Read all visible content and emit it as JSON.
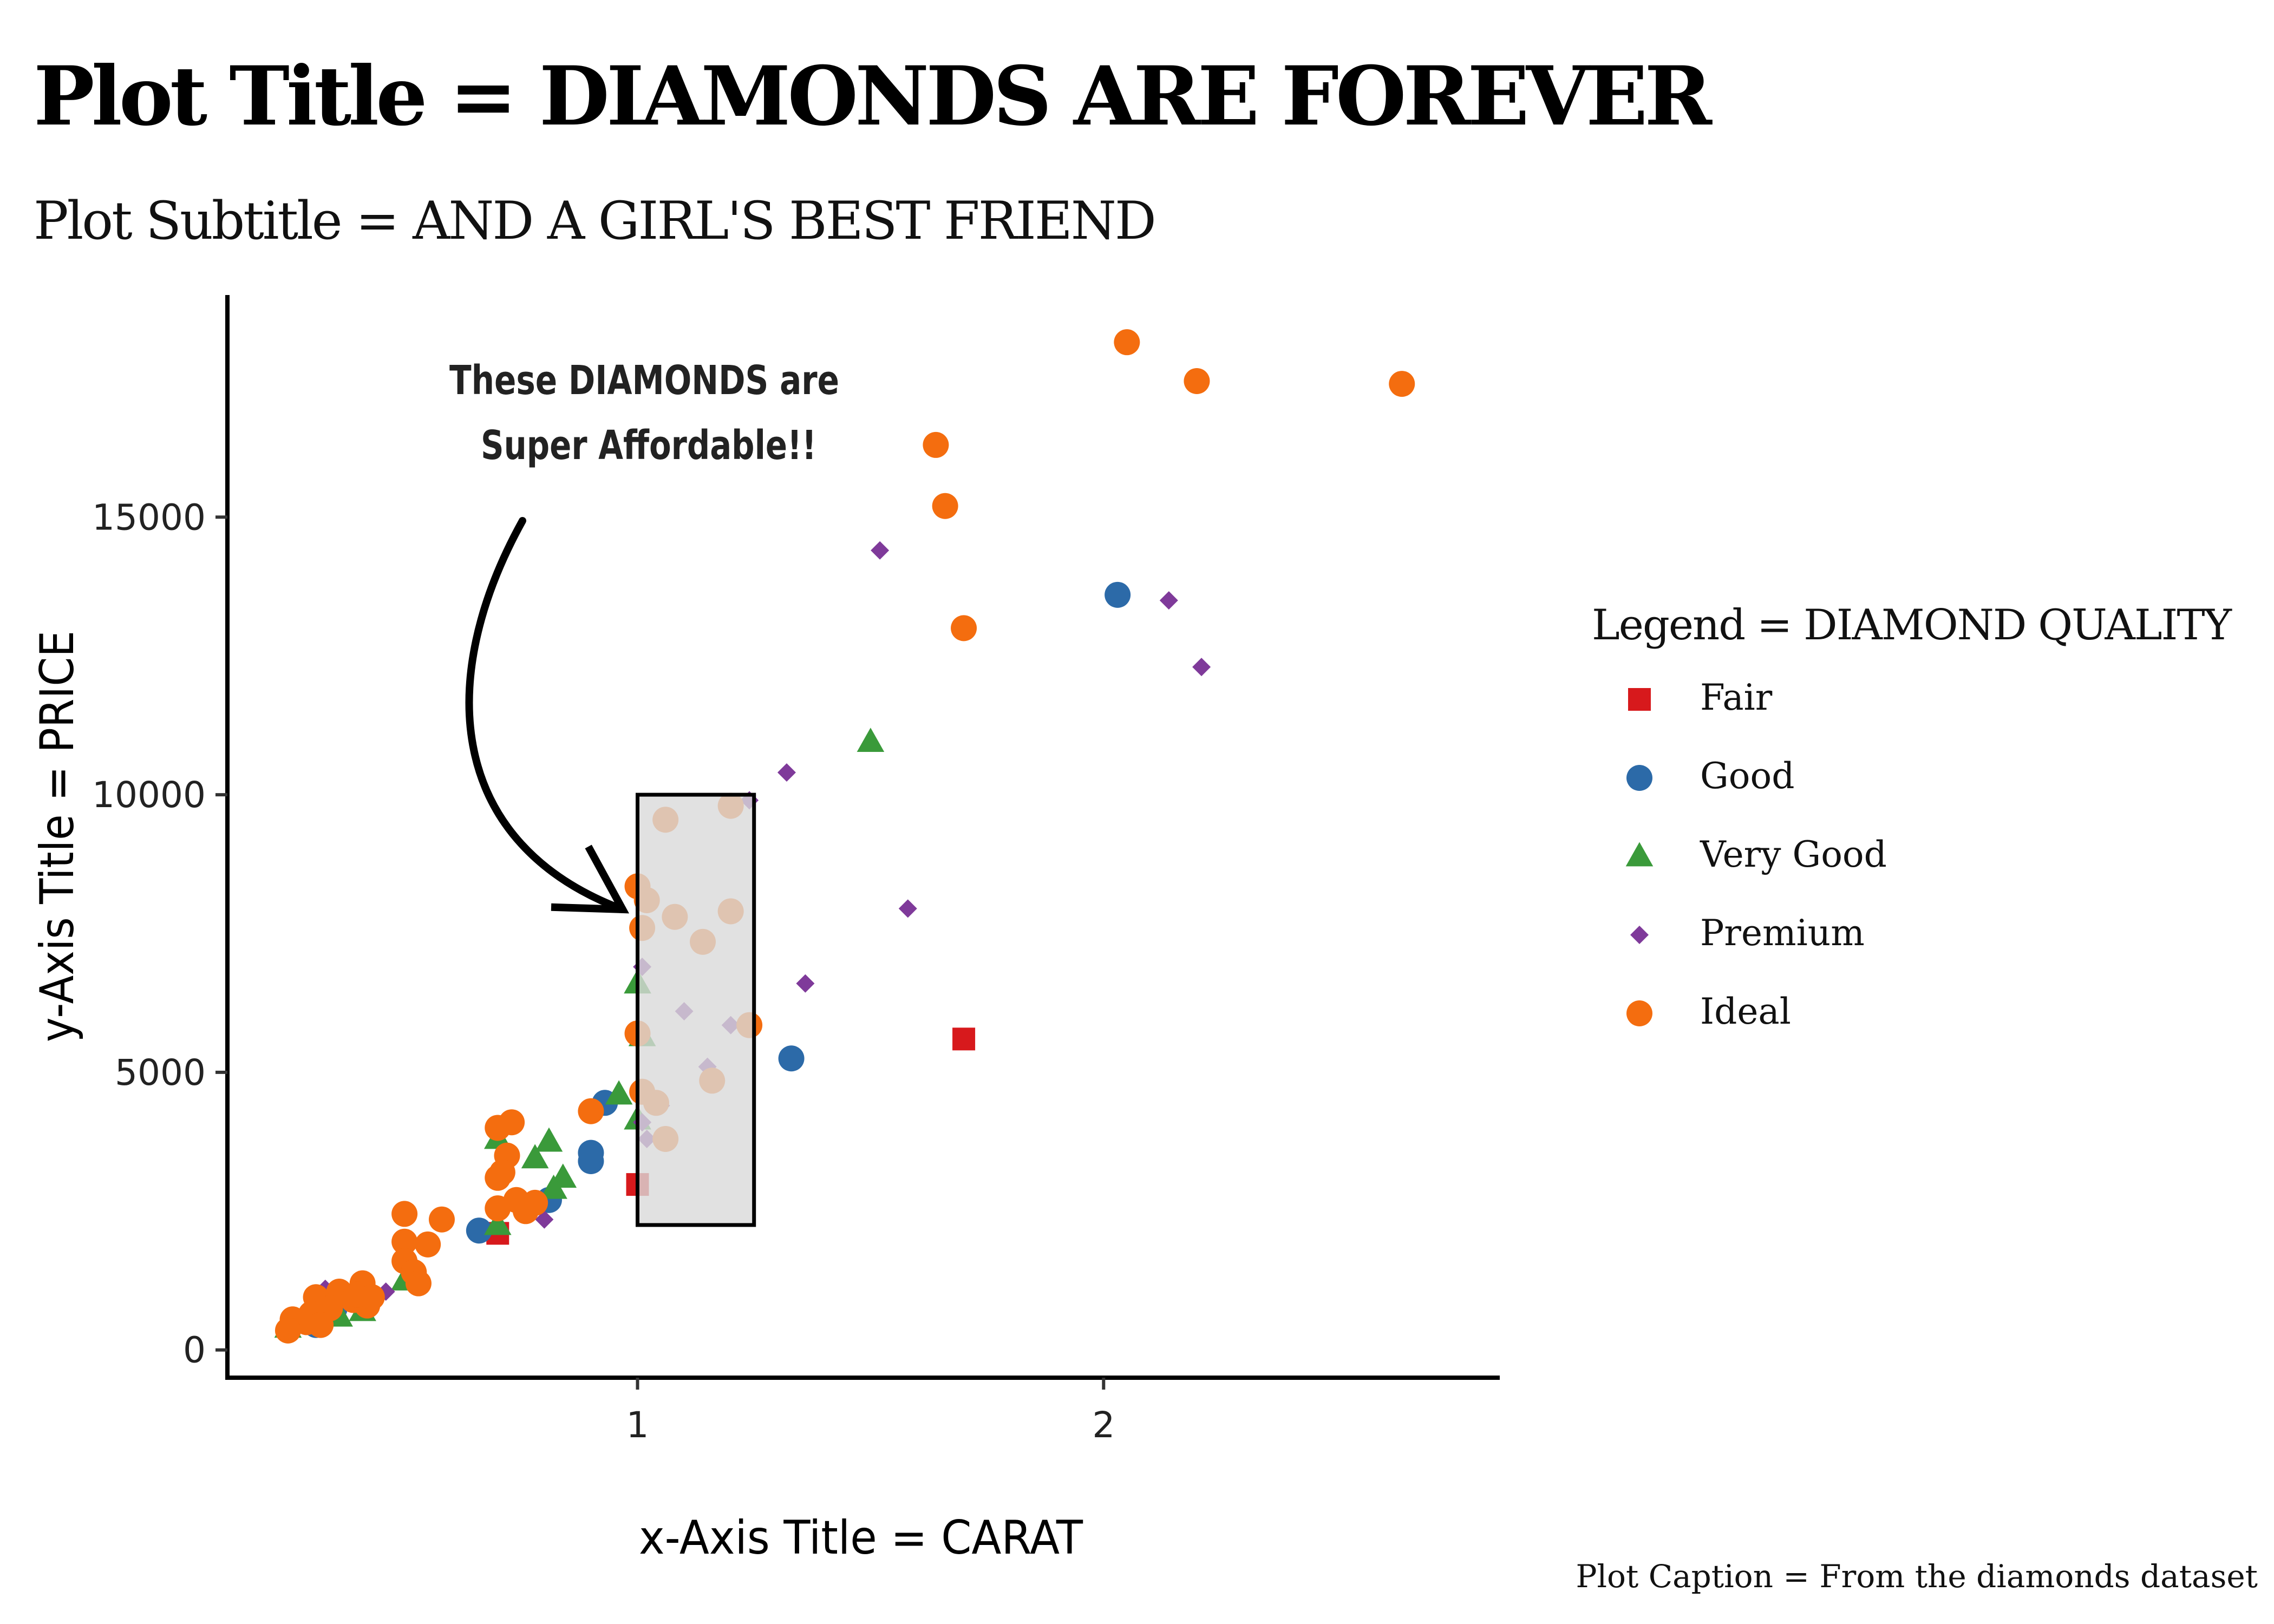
{
  "title": "Plot Title = DIAMONDS ARE FOREVER",
  "subtitle": "Plot Subtitle = AND A GIRL'S BEST FRIEND",
  "caption": "Plot Caption = From the diamonds dataset",
  "annotation": {
    "line1": "These DIAMONDS are",
    "line2": "Super Affordable!!",
    "highlight_range": {
      "x": [
        1.0,
        1.25
      ],
      "y": [
        2250,
        10000
      ]
    },
    "highlight_fill": "#d9d9d9"
  },
  "legend": {
    "title": "Legend = DIAMOND QUALITY",
    "placement": "right",
    "items": [
      {
        "label": "Fair",
        "shape": "square",
        "color": "#d7191c"
      },
      {
        "label": "Good",
        "shape": "circle",
        "color": "#2c6aa8"
      },
      {
        "label": "Very Good",
        "shape": "triangle",
        "color": "#3a9a3a"
      },
      {
        "label": "Premium",
        "shape": "diamond",
        "color": "#7f3a9a"
      },
      {
        "label": "Ideal",
        "shape": "circle",
        "color": "#f46d0f"
      }
    ]
  },
  "chart_data": {
    "type": "scatter",
    "xlabel": "x-Axis Title = CARAT",
    "ylabel": "y-Axis Title = PRICE",
    "xlim": [
      0.12,
      2.85
    ],
    "ylim": [
      -500,
      19000
    ],
    "x_ticks": [
      1,
      2
    ],
    "y_ticks": [
      0,
      5000,
      10000,
      15000
    ],
    "grid": false,
    "series": [
      {
        "name": "Fair",
        "points": [
          [
            0.7,
            2100
          ],
          [
            1.0,
            2980
          ],
          [
            1.7,
            5600
          ]
        ]
      },
      {
        "name": "Good",
        "points": [
          [
            2.03,
            13600
          ],
          [
            1.33,
            5250
          ],
          [
            0.93,
            4450
          ],
          [
            0.9,
            3550
          ],
          [
            0.9,
            3400
          ],
          [
            0.81,
            2700
          ],
          [
            0.66,
            2150
          ],
          [
            0.31,
            450
          ],
          [
            0.35,
            750
          ]
        ]
      },
      {
        "name": "Very Good",
        "points": [
          [
            1.5,
            10950
          ],
          [
            1.0,
            6600
          ],
          [
            1.01,
            5650
          ],
          [
            0.96,
            4600
          ],
          [
            1.0,
            4150
          ],
          [
            0.7,
            3800
          ],
          [
            0.81,
            3750
          ],
          [
            0.78,
            3450
          ],
          [
            0.84,
            3100
          ],
          [
            0.82,
            2900
          ],
          [
            0.7,
            2250
          ],
          [
            0.5,
            1250
          ],
          [
            0.41,
            700
          ],
          [
            0.25,
            400
          ],
          [
            0.36,
            600
          ]
        ]
      },
      {
        "name": "Premium",
        "points": [
          [
            1.52,
            14400
          ],
          [
            2.14,
            13500
          ],
          [
            2.21,
            12300
          ],
          [
            1.32,
            10400
          ],
          [
            1.24,
            9900
          ],
          [
            1.58,
            7950
          ],
          [
            1.36,
            6600
          ],
          [
            1.01,
            6900
          ],
          [
            1.1,
            6100
          ],
          [
            1.2,
            5850
          ],
          [
            1.0,
            5750
          ],
          [
            1.15,
            5100
          ],
          [
            1.05,
            4400
          ],
          [
            1.01,
            4100
          ],
          [
            1.02,
            3800
          ],
          [
            0.8,
            2350
          ],
          [
            0.46,
            1050
          ],
          [
            0.33,
            1100
          ],
          [
            0.38,
            850
          ]
        ]
      },
      {
        "name": "Ideal",
        "points": [
          [
            2.05,
            18150
          ],
          [
            2.2,
            17450
          ],
          [
            2.64,
            17400
          ],
          [
            1.64,
            16300
          ],
          [
            1.66,
            15200
          ],
          [
            1.7,
            13000
          ],
          [
            1.2,
            9800
          ],
          [
            1.06,
            9550
          ],
          [
            1.0,
            8350
          ],
          [
            1.02,
            8100
          ],
          [
            1.2,
            7900
          ],
          [
            1.08,
            7800
          ],
          [
            1.01,
            7600
          ],
          [
            1.14,
            7350
          ],
          [
            1.24,
            5850
          ],
          [
            1.0,
            5700
          ],
          [
            1.16,
            4850
          ],
          [
            1.01,
            4650
          ],
          [
            1.04,
            4450
          ],
          [
            1.06,
            3800
          ],
          [
            0.9,
            4300
          ],
          [
            0.73,
            4100
          ],
          [
            0.7,
            4000
          ],
          [
            0.72,
            3500
          ],
          [
            0.71,
            3200
          ],
          [
            0.7,
            3100
          ],
          [
            0.74,
            2700
          ],
          [
            0.76,
            2500
          ],
          [
            0.7,
            2550
          ],
          [
            0.78,
            2650
          ],
          [
            0.5,
            2450
          ],
          [
            0.58,
            2350
          ],
          [
            0.5,
            1950
          ],
          [
            0.55,
            1900
          ],
          [
            0.5,
            1600
          ],
          [
            0.52,
            1400
          ],
          [
            0.53,
            1200
          ],
          [
            0.41,
            1200
          ],
          [
            0.36,
            1050
          ],
          [
            0.31,
            950
          ],
          [
            0.39,
            900
          ],
          [
            0.42,
            800
          ],
          [
            0.34,
            750
          ],
          [
            0.3,
            650
          ],
          [
            0.26,
            550
          ],
          [
            0.29,
            500
          ],
          [
            0.32,
            450
          ],
          [
            0.25,
            350
          ],
          [
            0.4,
            1000
          ],
          [
            0.43,
            950
          ]
        ]
      }
    ]
  }
}
